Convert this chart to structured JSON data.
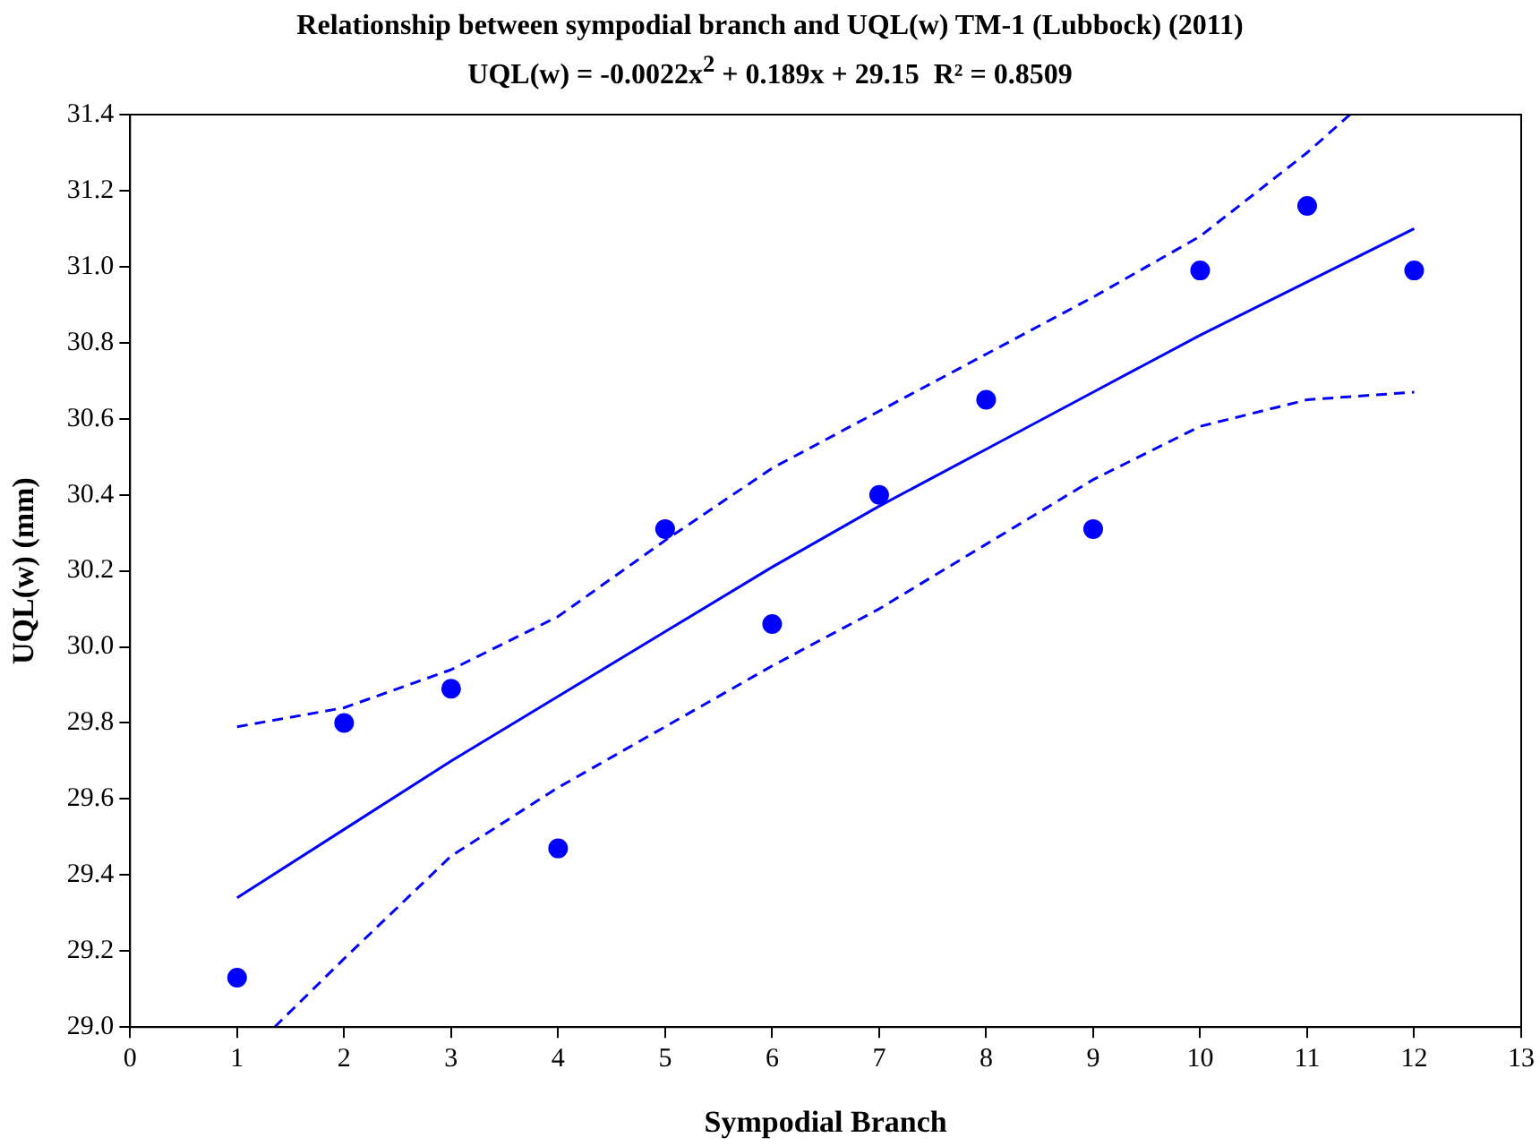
{
  "chart_data": {
    "type": "scatter",
    "title": "Relationship between sympodial branch and UQL(w) TM-1 (Lubbock) (2011)",
    "subtitle": "UQL(w) = -0.0022x$^{2}$ + 0.189x + 29.15  R² = 0.8509",
    "xlabel": "Sympodial Branch",
    "ylabel": "UQL(w) (mm)",
    "xlim": [
      0,
      13
    ],
    "xticks": [
      0,
      1,
      2,
      3,
      4,
      5,
      6,
      7,
      8,
      9,
      10,
      11,
      12,
      13
    ],
    "ylim": [
      29,
      31.4
    ],
    "yticks": [
      {
        "value": 29,
        "label": "29.0"
      },
      {
        "value": 29.2,
        "label": "29.2"
      },
      {
        "value": 29.4,
        "label": "29.4"
      },
      {
        "value": 29.6,
        "label": "29.6"
      },
      {
        "value": 29.8,
        "label": "29.8"
      },
      {
        "value": 30,
        "label": "30.0"
      },
      {
        "value": 30.2,
        "label": "30.2"
      },
      {
        "value": 30.4,
        "label": "30.4"
      },
      {
        "value": 30.6,
        "label": "30.6"
      },
      {
        "value": 30.8,
        "label": "30.8"
      },
      {
        "value": 31,
        "label": "31.0"
      },
      {
        "value": 31.2,
        "label": "31.2"
      },
      {
        "value": 31.4,
        "label": "31.4"
      }
    ],
    "grid": false,
    "legend": false,
    "series": [
      {
        "color": "#0000ff",
        "marker": "circle",
        "x": [
          1,
          2,
          3,
          4,
          5,
          6,
          7,
          8,
          9,
          10,
          11,
          12
        ],
        "values": [
          29.13,
          29.8,
          29.89,
          29.47,
          30.31,
          30.06,
          30.4,
          30.65,
          30.31,
          30.99,
          31.16,
          30.99
        ]
      },
      {
        "type": "line",
        "color": "#0000ff",
        "marker": "none",
        "line_style": "solid",
        "x": [
          1,
          2,
          3,
          4,
          5,
          6,
          7,
          8,
          9,
          10,
          11,
          12
        ],
        "values": [
          29.34,
          29.52,
          29.7,
          29.87,
          30.04,
          30.21,
          30.37,
          30.52,
          30.67,
          30.82,
          30.96,
          31.1
        ]
      },
      {
        "type": "line",
        "color": "#0000ff",
        "marker": "none",
        "line_style": "dashed",
        "x": [
          1,
          2,
          3,
          4,
          5,
          6,
          7,
          8,
          9,
          10,
          11,
          11.4
        ],
        "values": [
          29.79,
          29.84,
          29.94,
          30.08,
          30.28,
          30.47,
          30.62,
          30.77,
          30.92,
          31.08,
          31.3,
          31.4
        ]
      },
      {
        "type": "line",
        "color": "#0000ff",
        "marker": "none",
        "line_style": "dashed",
        "x": [
          1.35,
          2,
          3,
          4,
          5,
          6,
          7,
          8,
          9,
          10,
          11,
          12
        ],
        "values": [
          29,
          29.18,
          29.45,
          29.63,
          29.79,
          29.95,
          30.1,
          30.27,
          30.44,
          30.58,
          30.65,
          30.67
        ]
      }
    ]
  }
}
